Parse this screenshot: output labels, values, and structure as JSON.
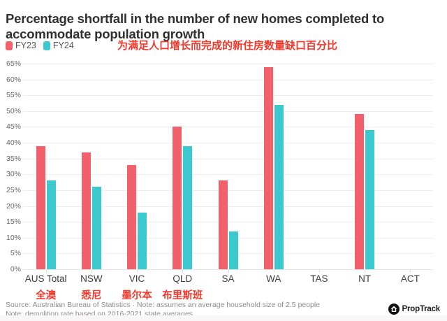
{
  "title": "Percentage shortfall in the number of new homes completed to accommodate population growth",
  "subtitle_cn": "为满足人口增长而完成的新住房数量缺口百分比",
  "legend": [
    {
      "label": "FY23",
      "color": "#F2606C"
    },
    {
      "label": "FY24",
      "color": "#3BC9CE"
    }
  ],
  "chart_data": {
    "type": "bar",
    "categories": [
      "AUS Total",
      "NSW",
      "VIC",
      "QLD",
      "SA",
      "WA",
      "TAS",
      "NT",
      "ACT"
    ],
    "categories_cn": [
      "全澳",
      "悉尼",
      "墨尔本",
      "布里斯班",
      "",
      "",
      "",
      "",
      ""
    ],
    "series": [
      {
        "name": "FY23",
        "color": "#F2606C",
        "values": [
          39,
          37,
          33,
          45,
          28,
          64,
          0,
          49,
          0
        ]
      },
      {
        "name": "FY24",
        "color": "#3BC9CE",
        "values": [
          28,
          26,
          18,
          39,
          12,
          52,
          0,
          44,
          0
        ]
      }
    ],
    "title": "Percentage shortfall in the number of new homes completed to accommodate population growth",
    "xlabel": "",
    "ylabel": "",
    "ylim": [
      0,
      65
    ],
    "ytick_step": 5,
    "ytick_suffix": "%",
    "grid": true,
    "legend_position": "top-left"
  },
  "footer": {
    "source_line": "Source: Australian Bureau of Statistics · Note: assumes an average household size of 2.5 people",
    "note_line": "Note: demolition rate based on 2016-2021 state averages",
    "brand": "PropTrack"
  },
  "colors": {
    "fy23": "#F2606C",
    "fy24": "#3BC9CE",
    "cn_red": "#F2392C",
    "title_text": "#303030",
    "grid": "#F0EDEE",
    "notes": "#8F8B8C"
  }
}
